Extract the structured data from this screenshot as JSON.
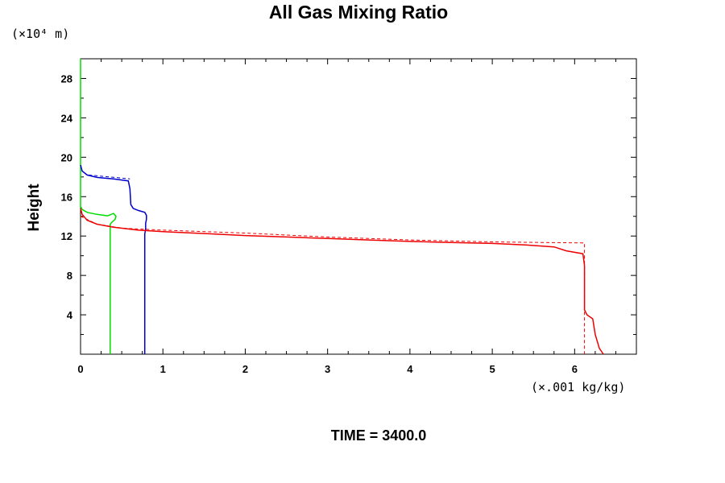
{
  "chart_data": {
    "type": "line",
    "title": "All Gas Mixing Ratio",
    "ylabel": "Height",
    "y_units": "(×10⁴ m)",
    "x_units": "(×.001 kg/kg)",
    "xlim": [
      0,
      6.75
    ],
    "ylim": [
      0,
      30
    ],
    "x_ticks": [
      0,
      1,
      2,
      3,
      4,
      5,
      6
    ],
    "x_tick_labels": [
      "0",
      "1",
      "2",
      "3",
      "4",
      "5",
      "6"
    ],
    "y_ticks": [
      4,
      8,
      12,
      16,
      20,
      24,
      28
    ],
    "y_tick_labels": [
      "4",
      "8",
      "12",
      "16",
      "20",
      "24",
      "28"
    ],
    "footer": "TIME = 3400.0",
    "series": [
      {
        "name": "green",
        "color": "#00dd00",
        "style": "solid",
        "points": [
          [
            0.0,
            30.0
          ],
          [
            0.0,
            15.6
          ],
          [
            0.0,
            15.0
          ],
          [
            0.02,
            14.7
          ],
          [
            0.08,
            14.4
          ],
          [
            0.2,
            14.2
          ],
          [
            0.33,
            14.05
          ],
          [
            0.4,
            14.3
          ],
          [
            0.43,
            14.0
          ],
          [
            0.42,
            13.7
          ],
          [
            0.38,
            13.4
          ],
          [
            0.36,
            13.2
          ],
          [
            0.36,
            12.0
          ],
          [
            0.36,
            0.0
          ]
        ]
      },
      {
        "name": "blue",
        "color": "#0000cc",
        "style": "solid",
        "points": [
          [
            0.0,
            19.2
          ],
          [
            0.02,
            18.6
          ],
          [
            0.08,
            18.2
          ],
          [
            0.2,
            17.95
          ],
          [
            0.4,
            17.8
          ],
          [
            0.58,
            17.6
          ],
          [
            0.6,
            16.8
          ],
          [
            0.61,
            15.2
          ],
          [
            0.64,
            14.8
          ],
          [
            0.7,
            14.6
          ],
          [
            0.78,
            14.4
          ],
          [
            0.8,
            14.1
          ],
          [
            0.8,
            13.7
          ],
          [
            0.79,
            13.3
          ],
          [
            0.79,
            12.7
          ],
          [
            0.78,
            12.2
          ],
          [
            0.78,
            8.0
          ],
          [
            0.78,
            0.0
          ]
        ]
      },
      {
        "name": "red",
        "color": "#ee0000",
        "style": "solid",
        "points": [
          [
            0.0,
            14.8
          ],
          [
            0.02,
            14.2
          ],
          [
            0.08,
            13.6
          ],
          [
            0.2,
            13.2
          ],
          [
            0.4,
            12.9
          ],
          [
            0.7,
            12.6
          ],
          [
            1.0,
            12.45
          ],
          [
            1.5,
            12.25
          ],
          [
            2.0,
            12.05
          ],
          [
            2.5,
            11.9
          ],
          [
            3.0,
            11.75
          ],
          [
            3.5,
            11.6
          ],
          [
            4.0,
            11.45
          ],
          [
            4.5,
            11.35
          ],
          [
            5.0,
            11.25
          ],
          [
            5.4,
            11.1
          ],
          [
            5.75,
            10.9
          ],
          [
            5.9,
            10.5
          ],
          [
            6.1,
            10.2
          ],
          [
            6.12,
            9.0
          ],
          [
            6.12,
            4.5
          ],
          [
            6.15,
            4.0
          ],
          [
            6.22,
            3.6
          ],
          [
            6.25,
            2.0
          ],
          [
            6.3,
            0.6
          ],
          [
            6.35,
            0.0
          ]
        ]
      },
      {
        "name": "red-dashed",
        "color": "#ee0000",
        "style": "dashed",
        "points": [
          [
            0.0,
            14.0
          ],
          [
            0.2,
            13.2
          ],
          [
            0.5,
            12.8
          ],
          [
            1.0,
            12.6
          ],
          [
            2.0,
            12.3
          ],
          [
            3.0,
            11.9
          ],
          [
            4.0,
            11.6
          ],
          [
            5.0,
            11.4
          ],
          [
            6.1,
            11.3
          ],
          [
            6.12,
            11.3
          ],
          [
            6.12,
            0.0
          ]
        ]
      },
      {
        "name": "blue-dashed",
        "color": "#0000cc",
        "style": "dashed",
        "points": [
          [
            0.1,
            18.2
          ],
          [
            0.6,
            17.8
          ]
        ]
      }
    ]
  }
}
